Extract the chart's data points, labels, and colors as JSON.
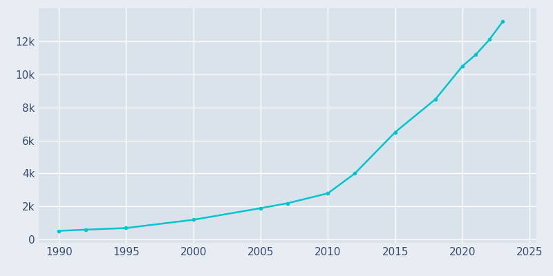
{
  "years": [
    1990,
    1992,
    1995,
    2000,
    2005,
    2007,
    2010,
    2012,
    2015,
    2018,
    2020,
    2021,
    2022,
    2023
  ],
  "population": [
    530,
    600,
    700,
    1200,
    1900,
    2200,
    2800,
    4000,
    6500,
    8500,
    10500,
    11200,
    12100,
    13200
  ],
  "line_color": "#00C5CD",
  "marker": "o",
  "marker_size": 3,
  "bg_color": "#E8EDF4",
  "axes_bg_color": "#DAE3EC",
  "grid_color": "#FFFFFF",
  "tick_label_color": "#3B4B6E",
  "xlim": [
    1988.5,
    2025.5
  ],
  "ylim": [
    -200,
    14000
  ],
  "xticks": [
    1990,
    1995,
    2000,
    2005,
    2010,
    2015,
    2020,
    2025
  ],
  "yticks": [
    0,
    2000,
    4000,
    6000,
    8000,
    10000,
    12000
  ],
  "ytick_labels": [
    "0",
    "2k",
    "4k",
    "6k",
    "8k",
    "10k",
    "12k"
  ],
  "line_width": 1.8,
  "tick_fontsize": 11
}
